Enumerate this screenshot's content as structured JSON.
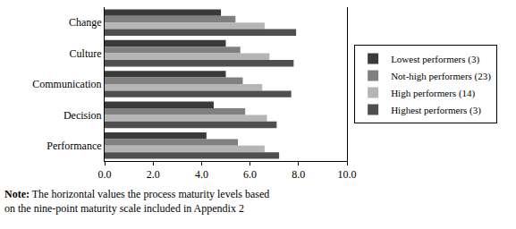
{
  "chart_data": {
    "type": "bar",
    "orientation": "horizontal",
    "categories": [
      "Change",
      "Culture",
      "Communication",
      "Decision",
      "Performance"
    ],
    "series": [
      {
        "name": "Lowest performers (3)",
        "color": "#3a3a3a",
        "values": [
          4.8,
          5.0,
          5.0,
          4.5,
          4.2
        ]
      },
      {
        "name": "Not-high performers (23)",
        "color": "#808080",
        "values": [
          5.4,
          5.6,
          5.7,
          5.8,
          5.5
        ]
      },
      {
        "name": "High performers (14)",
        "color": "#b5b5b5",
        "values": [
          6.6,
          6.8,
          6.5,
          6.7,
          6.6
        ]
      },
      {
        "name": "Highest performers (3)",
        "color": "#4f4f4f",
        "values": [
          7.9,
          7.8,
          7.7,
          7.1,
          7.2
        ]
      }
    ],
    "xlim": [
      0,
      10
    ],
    "xticks": [
      {
        "value": 0,
        "label": "0.0"
      },
      {
        "value": 2,
        "label": "2.0"
      },
      {
        "value": 4,
        "label": "4.0"
      },
      {
        "value": 6,
        "label": "6.0"
      },
      {
        "value": 8,
        "label": "8.0"
      },
      {
        "value": 10,
        "label": "10.0"
      }
    ],
    "grid": false,
    "legend": "right",
    "annotations": [
      "Note: The horizontal values the process maturity levels based on the nine-point maturity scale included in Appendix 2"
    ]
  }
}
